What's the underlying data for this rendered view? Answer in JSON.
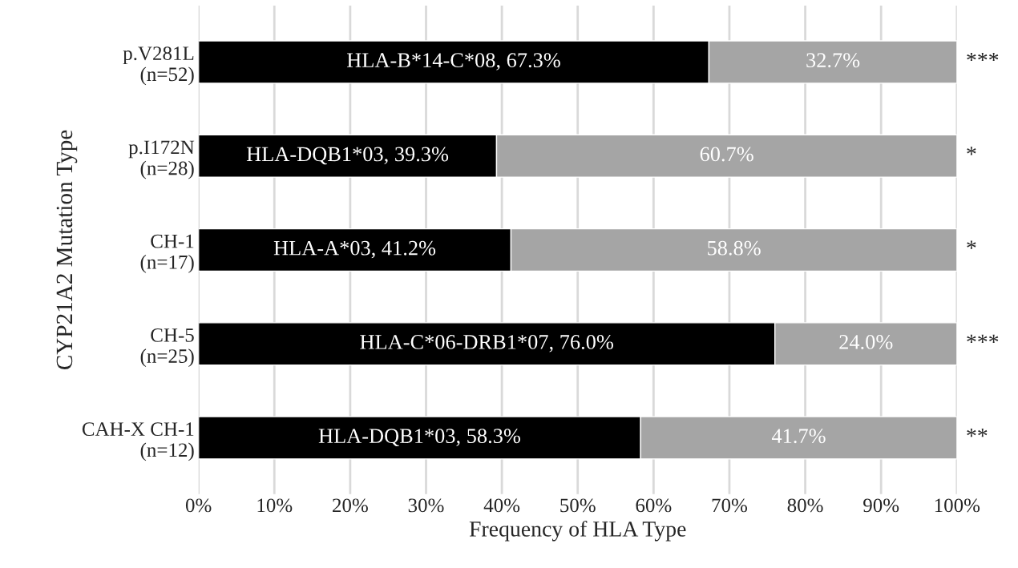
{
  "chart_data": {
    "type": "bar",
    "orientation": "horizontal",
    "stacked": true,
    "categories": [
      "p.V281L\n(n=52)",
      "p.I172N\n(n=28)",
      "CH-1\n(n=17)",
      "CH-5\n(n=25)",
      "CAH-X CH-1\n(n=12)"
    ],
    "series": [
      {
        "color": "#000000",
        "values": [
          67.3,
          39.3,
          41.2,
          76.0,
          58.3
        ],
        "value_labels": [
          "HLA-B*14-C*08, 67.3%",
          "HLA-DQB1*03, 39.3%",
          "HLA-A*03, 41.2%",
          "HLA-C*06-DRB1*07, 76.0%",
          "HLA-DQB1*03, 58.3%"
        ]
      },
      {
        "color": "#a5a5a5",
        "values": [
          32.7,
          60.7,
          58.8,
          24.0,
          41.7
        ],
        "value_labels": [
          "32.7%",
          "60.7%",
          "58.8%",
          "24.0%",
          "41.7%"
        ]
      }
    ],
    "xlabel": "Frequency of HLA Type",
    "ylabel": "CYP21A2 Mutation Type",
    "xlim": [
      0,
      100
    ],
    "xticks": [
      {
        "value": 0,
        "label": "0%"
      },
      {
        "value": 10,
        "label": "10%"
      },
      {
        "value": 20,
        "label": "20%"
      },
      {
        "value": 30,
        "label": "30%"
      },
      {
        "value": 40,
        "label": "40%"
      },
      {
        "value": 50,
        "label": "50%"
      },
      {
        "value": 60,
        "label": "60%"
      },
      {
        "value": 70,
        "label": "70%"
      },
      {
        "value": 80,
        "label": "80%"
      },
      {
        "value": 90,
        "label": "90%"
      },
      {
        "value": 100,
        "label": "100%"
      }
    ],
    "grid": "x",
    "legend": false,
    "annotations": [
      "***",
      "*",
      "*",
      "***",
      "**"
    ]
  }
}
